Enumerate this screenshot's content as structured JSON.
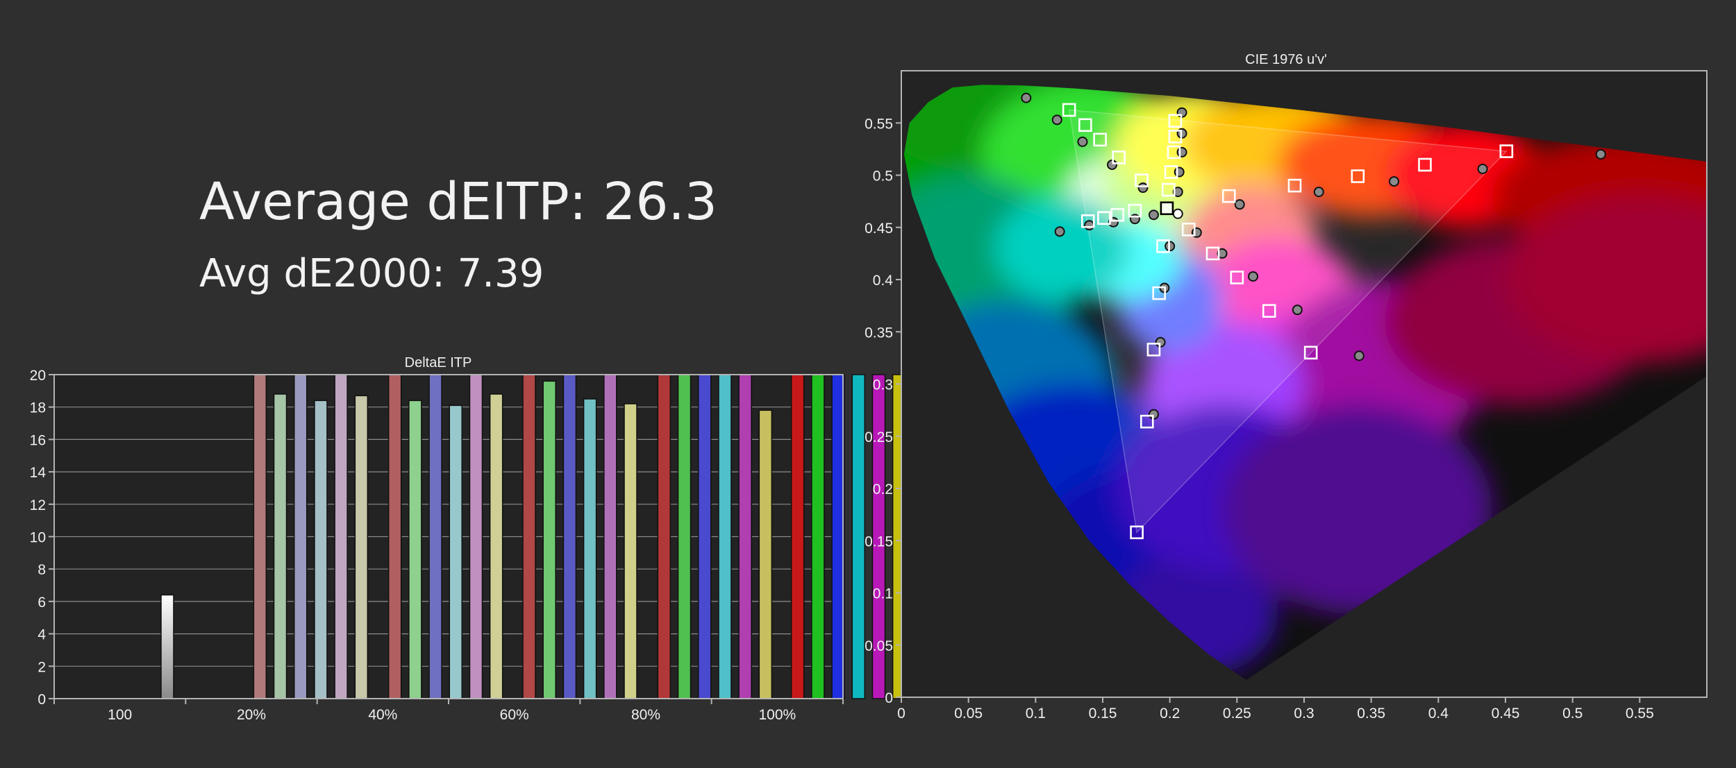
{
  "summary": {
    "average_deitp": "Average dEITP: 26.3",
    "avg_de2000": "Avg dE2000: 7.39"
  },
  "colors": {
    "background": "#2f2f2f",
    "plot_background": "#222222",
    "axis": "#c8c8c8",
    "text": "#f2f2f2"
  },
  "chart_data": [
    {
      "id": "deltae-itp",
      "type": "bar",
      "title": "DeltaE ITP",
      "ylim": [
        0,
        20
      ],
      "yticks": [
        0,
        2,
        4,
        6,
        8,
        10,
        12,
        14,
        16,
        18,
        20
      ],
      "grid": true,
      "groups": [
        {
          "label": "100",
          "bars": [
            {
              "value": 6.4,
              "color": "#ffffff",
              "clipped": false
            }
          ]
        },
        {
          "label": "20%",
          "bars": [
            {
              "value": 20,
              "color": "#b07a7a",
              "clipped": true
            },
            {
              "value": 18.8,
              "color": "#a6c4a6",
              "clipped": false
            },
            {
              "value": 20,
              "color": "#9a9ac0",
              "clipped": true
            },
            {
              "value": 18.4,
              "color": "#a6c0c8",
              "clipped": false
            },
            {
              "value": 20,
              "color": "#c0a6c0",
              "clipped": true
            },
            {
              "value": 18.7,
              "color": "#c8c8aa",
              "clipped": false
            }
          ]
        },
        {
          "label": "40%",
          "bars": [
            {
              "value": 20,
              "color": "#b06060",
              "clipped": true
            },
            {
              "value": 18.4,
              "color": "#8ed08e",
              "clipped": false
            },
            {
              "value": 20,
              "color": "#7070c0",
              "clipped": true
            },
            {
              "value": 18.1,
              "color": "#96c8cc",
              "clipped": false
            },
            {
              "value": 20,
              "color": "#c090c0",
              "clipped": true
            },
            {
              "value": 18.8,
              "color": "#d0d096",
              "clipped": false
            }
          ]
        },
        {
          "label": "60%",
          "bars": [
            {
              "value": 20,
              "color": "#b04848",
              "clipped": true
            },
            {
              "value": 19.6,
              "color": "#70c870",
              "clipped": false
            },
            {
              "value": 20,
              "color": "#5a5ac4",
              "clipped": true
            },
            {
              "value": 18.5,
              "color": "#70c0c4",
              "clipped": false
            },
            {
              "value": 20,
              "color": "#b070b8",
              "clipped": true
            },
            {
              "value": 18.2,
              "color": "#d0d08a",
              "clipped": false
            }
          ]
        },
        {
          "label": "80%",
          "bars": [
            {
              "value": 20,
              "color": "#b03838",
              "clipped": true
            },
            {
              "value": 20,
              "color": "#50c050",
              "clipped": true
            },
            {
              "value": 20,
              "color": "#4a4ad0",
              "clipped": true
            },
            {
              "value": 20,
              "color": "#50c0c8",
              "clipped": true
            },
            {
              "value": 20,
              "color": "#b040b0",
              "clipped": true
            },
            {
              "value": 17.8,
              "color": "#c8c060",
              "clipped": false
            }
          ]
        },
        {
          "label": "100%",
          "bars": [
            {
              "value": 20,
              "color": "#c81818",
              "clipped": true
            },
            {
              "value": 20,
              "color": "#20c020",
              "clipped": true
            },
            {
              "value": 20,
              "color": "#2030e0",
              "clipped": true
            },
            {
              "value": 20,
              "color": "#10b8c0",
              "clipped": true
            },
            {
              "value": 20,
              "color": "#b818b8",
              "clipped": true
            },
            {
              "value": 20,
              "color": "#c8c010",
              "clipped": true
            }
          ]
        }
      ]
    },
    {
      "id": "cie-1976",
      "type": "scatter",
      "title": "CIE 1976 u'v'",
      "xlim": [
        0,
        0.6
      ],
      "ylim": [
        0,
        0.6
      ],
      "xticks": [
        0,
        0.05,
        0.1,
        0.15,
        0.2,
        0.25,
        0.3,
        0.35,
        0.4,
        0.45,
        0.5,
        0.55
      ],
      "yticks": [
        0,
        0.05,
        0.1,
        0.15,
        0.2,
        0.25,
        0.3,
        0.35,
        0.4,
        0.45,
        0.5,
        0.55
      ],
      "gamut_triangle": [
        [
          0.4507,
          0.5229
        ],
        [
          0.125,
          0.5625
        ],
        [
          0.1754,
          0.1579
        ]
      ],
      "white_point": [
        0.1978,
        0.4683
      ],
      "targets": [
        [
          0.4507,
          0.5229
        ],
        [
          0.39,
          0.51
        ],
        [
          0.34,
          0.499
        ],
        [
          0.293,
          0.49
        ],
        [
          0.244,
          0.48
        ],
        [
          0.214,
          0.448
        ],
        [
          0.232,
          0.425
        ],
        [
          0.25,
          0.402
        ],
        [
          0.274,
          0.37
        ],
        [
          0.305,
          0.33
        ],
        [
          0.125,
          0.5625
        ],
        [
          0.137,
          0.548
        ],
        [
          0.148,
          0.534
        ],
        [
          0.162,
          0.517
        ],
        [
          0.179,
          0.495
        ],
        [
          0.204,
          0.552
        ],
        [
          0.204,
          0.537
        ],
        [
          0.203,
          0.522
        ],
        [
          0.201,
          0.503
        ],
        [
          0.199,
          0.486
        ],
        [
          0.139,
          0.456
        ],
        [
          0.151,
          0.459
        ],
        [
          0.161,
          0.462
        ],
        [
          0.174,
          0.466
        ],
        [
          0.195,
          0.432
        ],
        [
          0.192,
          0.387
        ],
        [
          0.188,
          0.333
        ],
        [
          0.183,
          0.264
        ],
        [
          0.1754,
          0.1579
        ],
        [
          0.1978,
          0.4683
        ]
      ],
      "measurements": [
        [
          0.521,
          0.52
        ],
        [
          0.433,
          0.506
        ],
        [
          0.367,
          0.494
        ],
        [
          0.311,
          0.484
        ],
        [
          0.252,
          0.472
        ],
        [
          0.22,
          0.445
        ],
        [
          0.239,
          0.425
        ],
        [
          0.262,
          0.403
        ],
        [
          0.295,
          0.371
        ],
        [
          0.341,
          0.327
        ],
        [
          0.093,
          0.574
        ],
        [
          0.116,
          0.553
        ],
        [
          0.135,
          0.532
        ],
        [
          0.157,
          0.51
        ],
        [
          0.18,
          0.488
        ],
        [
          0.209,
          0.56
        ],
        [
          0.209,
          0.54
        ],
        [
          0.209,
          0.522
        ],
        [
          0.207,
          0.503
        ],
        [
          0.206,
          0.484
        ],
        [
          0.118,
          0.446
        ],
        [
          0.14,
          0.452
        ],
        [
          0.158,
          0.455
        ],
        [
          0.174,
          0.458
        ],
        [
          0.188,
          0.462
        ],
        [
          0.2,
          0.432
        ],
        [
          0.196,
          0.392
        ],
        [
          0.193,
          0.34
        ],
        [
          0.188,
          0.271
        ],
        [
          0.206,
          0.463
        ]
      ]
    }
  ]
}
